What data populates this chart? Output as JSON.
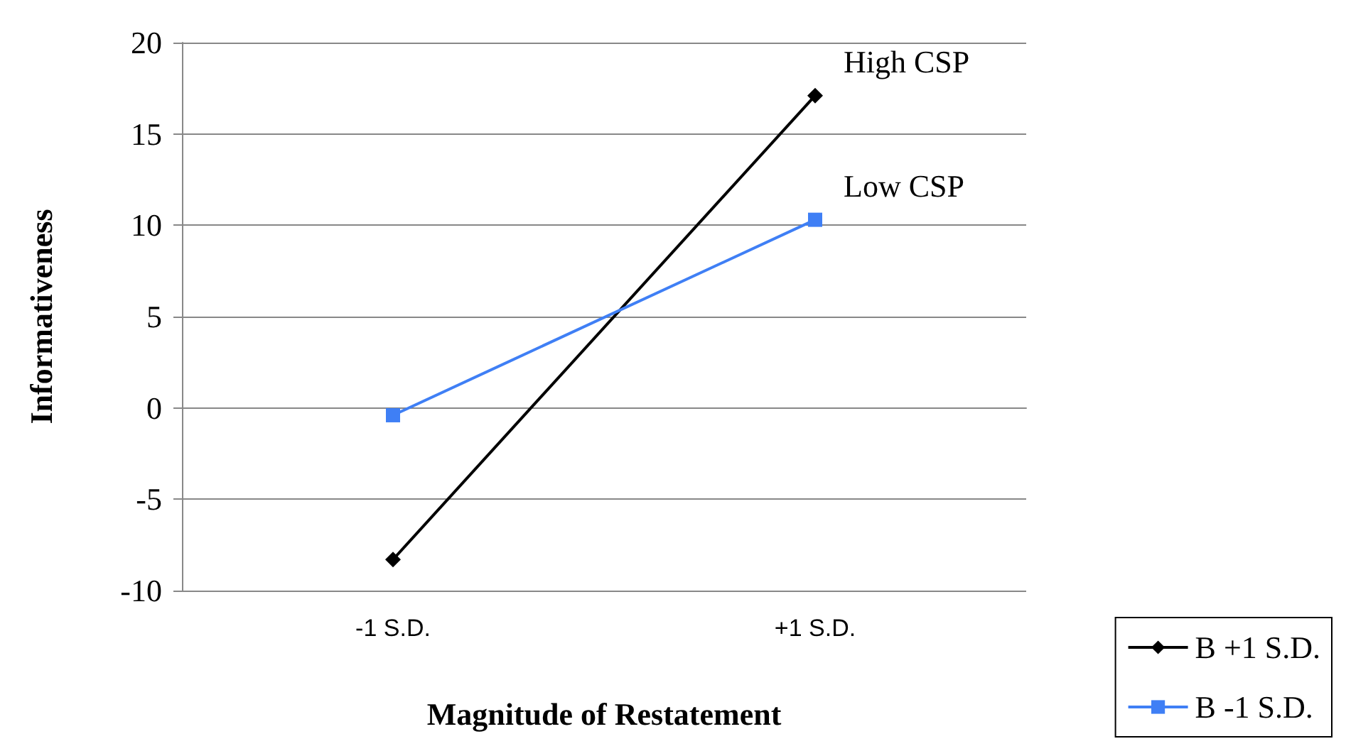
{
  "chart_data": {
    "type": "line",
    "xlabel": "Magnitude of Restatement",
    "ylabel": "Informativeness",
    "categories": [
      "-1 S.D.",
      "+1 S.D."
    ],
    "series": [
      {
        "name": "B +1 S.D.",
        "color": "#000000",
        "values": [
          -8.3,
          17.1
        ],
        "marker": "diamond"
      },
      {
        "name": "B -1 S.D.",
        "color": "#3f7ff5",
        "values": [
          -0.4,
          10.3
        ],
        "marker": "square"
      }
    ],
    "ylim": [
      -10,
      20
    ],
    "yticks": [
      -10,
      -5,
      0,
      5,
      10,
      15,
      20
    ],
    "grid": "y",
    "legend": "bottom right",
    "annotations": [
      "High CSP",
      "Low CSP"
    ]
  }
}
